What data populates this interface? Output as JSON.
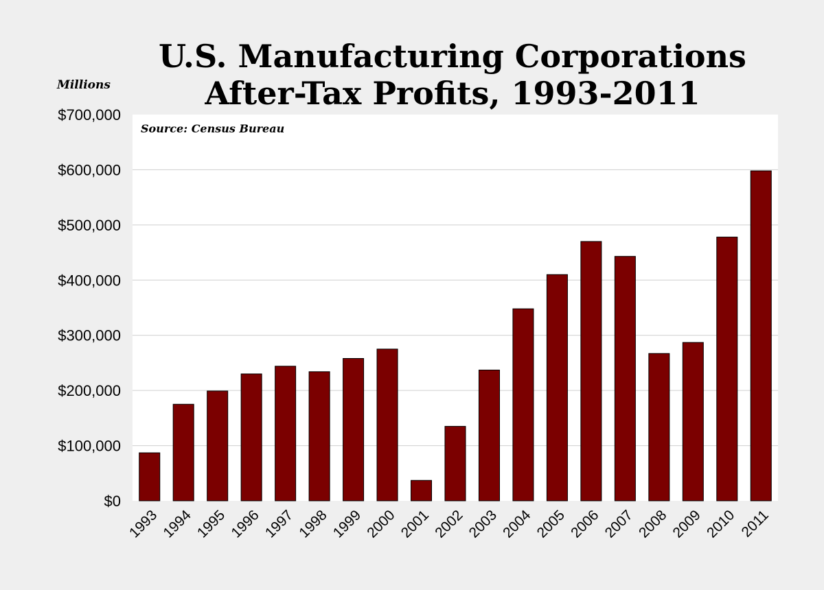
{
  "chart_data": {
    "type": "bar",
    "title_lines": [
      "U.S. Manufacturing Corporations",
      "After-Tax Profits, 1993-2011"
    ],
    "units_label": "Millions",
    "source": "Source: Census Bureau",
    "categories": [
      "1993",
      "1994",
      "1995",
      "1996",
      "1997",
      "1998",
      "1999",
      "2000",
      "2001",
      "2002",
      "2003",
      "2004",
      "2005",
      "2006",
      "2007",
      "2008",
      "2009",
      "2010",
      "2011"
    ],
    "values": [
      87000,
      175000,
      199000,
      230000,
      244000,
      234000,
      258000,
      275000,
      37000,
      135000,
      237000,
      348000,
      410000,
      470000,
      443000,
      267000,
      287000,
      478000,
      598000
    ],
    "ylim": [
      0,
      700000
    ],
    "yticks": [
      0,
      100000,
      200000,
      300000,
      400000,
      500000,
      600000,
      700000
    ],
    "ytick_labels": [
      "$0",
      "$100,000",
      "$200,000",
      "$300,000",
      "$400,000",
      "$500,000",
      "$600,000",
      "$700,000"
    ],
    "bar_color": "#7b0000",
    "plot_background": "#ffffff",
    "page_background": "#efefef",
    "grid": true,
    "legend": "none"
  }
}
